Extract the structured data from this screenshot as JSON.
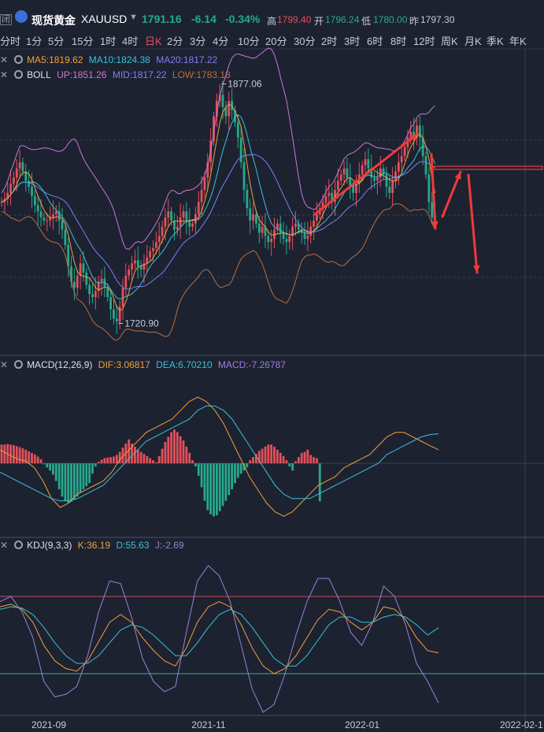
{
  "header": {
    "badge": "闭",
    "name": "现货黄金",
    "symbol": "XAUUSD",
    "price": "1791.16",
    "change": "-6.14",
    "change_pct": "-0.34%",
    "high_label": "高",
    "high": "1799.40",
    "open_label": "开",
    "open": "1796.24",
    "low_label": "低",
    "low": "1780.00",
    "prev_label": "昨",
    "prev": "1797.30"
  },
  "periods": [
    "分时",
    "1分",
    "5分",
    "15分",
    "1时",
    "4时",
    "日K",
    "2分",
    "3分",
    "4分",
    "10分",
    "20分",
    "30分",
    "2时",
    "3时",
    "6时",
    "8时",
    "12时",
    "周K",
    "月K",
    "季K",
    "年K"
  ],
  "active_period": "日K",
  "legends": {
    "ma": {
      "ma5": "MA5:1819.62",
      "ma10": "MA10:1824.38",
      "ma20": "MA20:1817.22"
    },
    "boll": {
      "name": "BOLL",
      "up": "UP:1851.26",
      "mid": "MID:1817.22",
      "low": "LOW:1783.18"
    },
    "macd": {
      "name": "MACD(12,26,9)",
      "dif": "DIF:3.06817",
      "dea": "DEA:6.70210",
      "macd": "MACD:-7.26787"
    },
    "kdj": {
      "name": "KDJ(9,3,3)",
      "k": "K:36.19",
      "d": "D:55.63",
      "j": "J:-2.69"
    }
  },
  "colors": {
    "bg": "#1d2231",
    "up": "#e5505a",
    "down": "#26a98d",
    "ma5": "#f0a03c",
    "ma10": "#39c1d6",
    "ma20": "#7e7ff2",
    "boll_up": "#c878d2",
    "boll_low": "#b8703c",
    "arrow": "#ef3b3b",
    "grid": "#3a4050"
  },
  "chart_data": [
    {
      "type": "candlestick",
      "title": "XAUUSD 日K",
      "x_tick_labels": [
        "2021-09",
        "2021-11",
        "2022-01",
        "2022-02-1"
      ],
      "annotations": [
        {
          "text": "1877.06",
          "kind": "high"
        },
        {
          "text": "1720.90",
          "kind": "low"
        }
      ],
      "ylim": [
        1700,
        1900
      ],
      "note": "closes approximate, read from price path",
      "closes": [
        1800,
        1802,
        1806,
        1812,
        1816,
        1822,
        1826,
        1820,
        1814,
        1810,
        1804,
        1798,
        1794,
        1790,
        1788,
        1788,
        1790,
        1792,
        1794,
        1788,
        1782,
        1772,
        1758,
        1748,
        1744,
        1752,
        1760,
        1754,
        1746,
        1740,
        1738,
        1742,
        1748,
        1750,
        1744,
        1738,
        1730,
        1724,
        1722,
        1732,
        1744,
        1752,
        1756,
        1760,
        1762,
        1758,
        1756,
        1760,
        1764,
        1768,
        1770,
        1774,
        1778,
        1784,
        1790,
        1794,
        1788,
        1782,
        1784,
        1790,
        1794,
        1788,
        1784,
        1786,
        1792,
        1800,
        1808,
        1816,
        1826,
        1840,
        1856,
        1866,
        1870,
        1862,
        1856,
        1866,
        1860,
        1852,
        1842,
        1826,
        1808,
        1796,
        1788,
        1792,
        1786,
        1780,
        1784,
        1778,
        1774,
        1776,
        1782,
        1786,
        1780,
        1776,
        1774,
        1778,
        1784,
        1786,
        1782,
        1780,
        1776,
        1778,
        1784,
        1788,
        1792,
        1796,
        1800,
        1804,
        1806,
        1800,
        1808,
        1814,
        1818,
        1822,
        1816,
        1810,
        1806,
        1812,
        1818,
        1824,
        1828,
        1822,
        1816,
        1814,
        1816,
        1822,
        1818,
        1810,
        1806,
        1814,
        1820,
        1826,
        1830,
        1836,
        1842,
        1846,
        1842,
        1850,
        1842,
        1830,
        1818,
        1800,
        1790,
        1791
      ]
    },
    {
      "type": "bar",
      "title": "MACD(12,26,9)",
      "note": "approximate histogram values",
      "values": [
        3.6,
        3.6,
        3.7,
        3.6,
        3.5,
        3.3,
        3.1,
        2.9,
        2.6,
        2.3,
        2.0,
        1.7,
        1.3,
        0.8,
        -0.2,
        -0.8,
        -1.4,
        -2.2,
        -3.4,
        -5.0,
        -6.4,
        -7.3,
        -7.6,
        -7.4,
        -7.0,
        -6.4,
        -5.6,
        -5.0,
        -4.4,
        -3.8,
        -2.0,
        -0.6,
        0.3,
        0.7,
        1.0,
        1.1,
        1.2,
        1.3,
        1.6,
        2.2,
        3.0,
        3.8,
        4.6,
        3.8,
        3.2,
        2.6,
        2.2,
        1.8,
        1.4,
        1.0,
        0.6,
        0.2,
        1.4,
        2.8,
        4.1,
        5.1,
        6.0,
        6.5,
        6.0,
        5.2,
        4.4,
        3.2,
        2.0,
        0.6,
        -0.6,
        -2.4,
        -4.6,
        -7.2,
        -9.0,
        -9.8,
        -10.2,
        -10.0,
        -9.2,
        -8.2,
        -7.2,
        -6.1,
        -5.0,
        -3.8,
        -2.8,
        -2.0,
        -1.4,
        -0.8,
        0.6,
        1.2,
        1.8,
        2.4,
        2.8,
        3.2,
        3.6,
        3.6,
        3.2,
        2.6,
        2.0,
        1.4,
        0.6,
        -0.6,
        -1.4,
        0.4,
        1.2,
        2.0,
        2.2,
        2.6,
        1.6,
        1.2,
        1.0,
        -7.3
      ],
      "series": [
        {
          "name": "DIF",
          "values": [
            3,
            2,
            1,
            0.5,
            -1,
            -4,
            -8,
            -10,
            -9,
            -7,
            -6,
            -5,
            -4,
            -2,
            1,
            3,
            5,
            7,
            8,
            9,
            10,
            12,
            14,
            15,
            14,
            12,
            9,
            5,
            1,
            -3,
            -6,
            -9,
            -11,
            -12,
            -11,
            -9,
            -7,
            -5,
            -4,
            -3,
            -1,
            0,
            1,
            2,
            4,
            6,
            7,
            7,
            6,
            5,
            4,
            3.06817
          ]
        },
        {
          "name": "DEA",
          "values": [
            -2,
            -3,
            -4,
            -5,
            -6,
            -7,
            -8,
            -8.5,
            -8.5,
            -8,
            -7,
            -6,
            -5,
            -3,
            -1,
            1,
            3,
            5,
            6,
            7,
            8,
            9,
            10,
            12,
            13,
            13,
            12,
            10,
            7,
            4,
            1,
            -2,
            -5,
            -7,
            -8,
            -8,
            -8,
            -7,
            -6,
            -5,
            -4,
            -3,
            -2,
            -1,
            0,
            2,
            3,
            4,
            5,
            6,
            6.5,
            6.7021
          ]
        }
      ]
    },
    {
      "type": "line",
      "title": "KDJ(9,3,3)",
      "note": "approximate values",
      "series": [
        {
          "name": "K",
          "values": [
            72,
            74,
            70,
            60,
            42,
            30,
            24,
            22,
            30,
            45,
            60,
            66,
            60,
            48,
            38,
            30,
            26,
            40,
            60,
            72,
            76,
            72,
            58,
            40,
            26,
            20,
            24,
            34,
            48,
            62,
            70,
            68,
            60,
            54,
            60,
            72,
            70,
            62,
            48,
            38,
            36.19
          ]
        },
        {
          "name": "D",
          "values": [
            70,
            72,
            71,
            66,
            56,
            44,
            34,
            28,
            28,
            34,
            44,
            54,
            58,
            56,
            50,
            42,
            34,
            34,
            44,
            56,
            66,
            70,
            66,
            56,
            44,
            32,
            26,
            26,
            34,
            46,
            58,
            64,
            64,
            60,
            60,
            64,
            66,
            64,
            58,
            50,
            55.63
          ]
        },
        {
          "name": "J",
          "values": [
            76,
            80,
            68,
            48,
            14,
            2,
            4,
            10,
            34,
            68,
            92,
            90,
            64,
            32,
            14,
            6,
            10,
            52,
            92,
            104,
            96,
            76,
            42,
            8,
            -10,
            -4,
            20,
            50,
            76,
            94,
            94,
            76,
            52,
            42,
            60,
            88,
            80,
            58,
            28,
            14,
            -2.69
          ]
        }
      ]
    }
  ]
}
